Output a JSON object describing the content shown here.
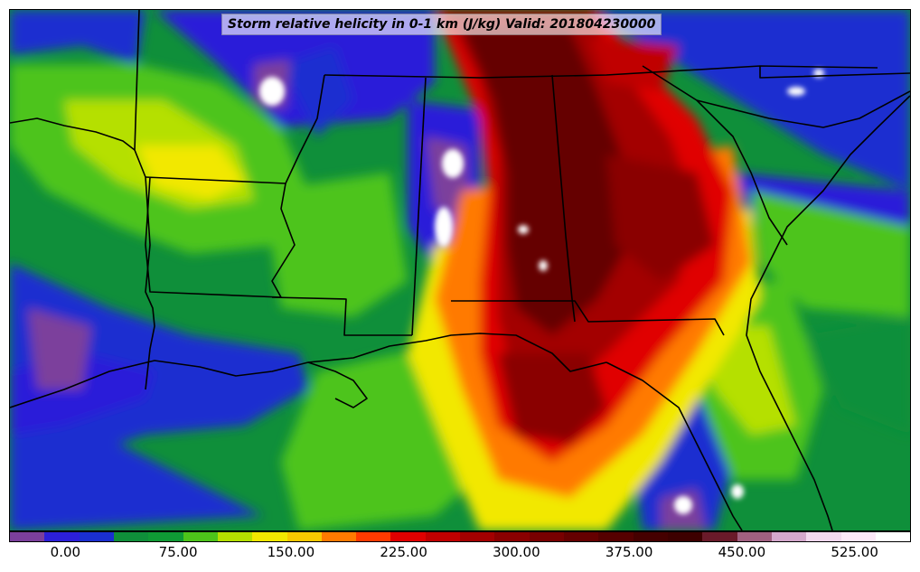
{
  "title": "Storm relative helicity in 0-1 km (J/kg) Valid: 201804230000",
  "colorbar": {
    "colors": [
      "#7b3f9c",
      "#2c1fd9",
      "#1a2fd0",
      "#0f8f3a",
      "#0f9a35",
      "#4dc41a",
      "#b5e000",
      "#f2e800",
      "#f7c800",
      "#ff7a00",
      "#ff3a00",
      "#e00000",
      "#c00000",
      "#a30000",
      "#8a0000",
      "#780000",
      "#650000",
      "#550000",
      "#450000",
      "#3d0000",
      "#6a1a2a",
      "#a06080",
      "#d4a8cc",
      "#f2d8ee",
      "#fce8f8",
      "#ffffff"
    ],
    "tick_labels": [
      "0.00",
      "75.00",
      "150.00",
      "225.00",
      "300.00",
      "375.00",
      "450.00",
      "525.00"
    ],
    "tick_values": [
      0,
      75,
      150,
      225,
      300,
      375,
      450,
      525
    ],
    "vmin": -37.5,
    "vmax": 562.5
  },
  "map": {
    "region": "Southeastern United States",
    "field_colors": {
      "low": "#1a2fd0",
      "mid_low": "#0f8f3a",
      "mid": "#4dc41a",
      "yellow": "#f2e800",
      "orange": "#ff7a00",
      "red": "#e00000",
      "dark_red": "#8a0000",
      "purple": "#7b3f9c",
      "white": "#ffffff",
      "boundary": "#000000"
    }
  }
}
